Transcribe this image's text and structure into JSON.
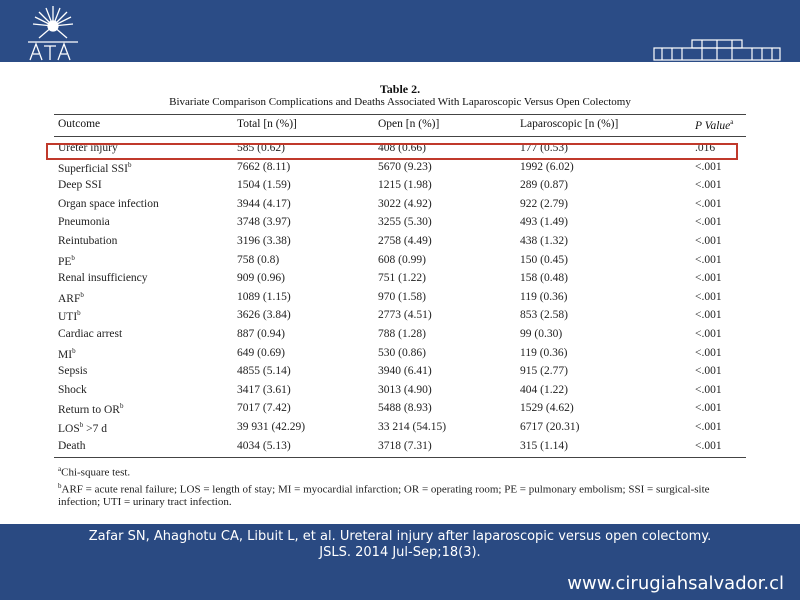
{
  "table": {
    "title": "Table 2.",
    "subtitle": "Bivariate Comparison Complications and Deaths Associated With Laparoscopic Versus Open Colectomy",
    "headers": [
      "Outcome",
      "Total [n (%)]",
      "Open [n (%)]",
      "Laparoscopic [n (%)]",
      "P Value"
    ],
    "header_p_sup": "a",
    "rows": [
      {
        "outcome": "Ureter injury",
        "sup": "",
        "total": "585 (0.62)",
        "open": "408 (0.66)",
        "lap": "177 (0.53)",
        "p": ".016"
      },
      {
        "outcome": "Superficial SSI",
        "sup": "b",
        "total": "7662 (8.11)",
        "open": "5670 (9.23)",
        "lap": "1992 (6.02)",
        "p": "<.001"
      },
      {
        "outcome": "Deep SSI",
        "sup": "",
        "total": "1504 (1.59)",
        "open": "1215 (1.98)",
        "lap": "289 (0.87)",
        "p": "<.001"
      },
      {
        "outcome": "Organ space infection",
        "sup": "",
        "total": "3944 (4.17)",
        "open": "3022 (4.92)",
        "lap": "922 (2.79)",
        "p": "<.001"
      },
      {
        "outcome": "Pneumonia",
        "sup": "",
        "total": "3748 (3.97)",
        "open": "3255 (5.30)",
        "lap": "493 (1.49)",
        "p": "<.001"
      },
      {
        "outcome": "Reintubation",
        "sup": "",
        "total": "3196 (3.38)",
        "open": "2758 (4.49)",
        "lap": "438 (1.32)",
        "p": "<.001"
      },
      {
        "outcome": "PE",
        "sup": "b",
        "total": "758 (0.8)",
        "open": "608 (0.99)",
        "lap": "150 (0.45)",
        "p": "<.001"
      },
      {
        "outcome": "Renal insufficiency",
        "sup": "",
        "total": "909 (0.96)",
        "open": "751 (1.22)",
        "lap": "158 (0.48)",
        "p": "<.001"
      },
      {
        "outcome": "ARF",
        "sup": "b",
        "total": "1089 (1.15)",
        "open": "970 (1.58)",
        "lap": "119 (0.36)",
        "p": "<.001"
      },
      {
        "outcome": "UTI",
        "sup": "b",
        "total": "3626 (3.84)",
        "open": "2773 (4.51)",
        "lap": "853 (2.58)",
        "p": "<.001"
      },
      {
        "outcome": "Cardiac arrest",
        "sup": "",
        "total": "887 (0.94)",
        "open": "788 (1.28)",
        "lap": "99 (0.30)",
        "p": "<.001"
      },
      {
        "outcome": "MI",
        "sup": "b",
        "total": "649 (0.69)",
        "open": "530 (0.86)",
        "lap": "119 (0.36)",
        "p": "<.001"
      },
      {
        "outcome": "Sepsis",
        "sup": "",
        "total": "4855 (5.14)",
        "open": "3940 (6.41)",
        "lap": "915 (2.77)",
        "p": "<.001"
      },
      {
        "outcome": "Shock",
        "sup": "",
        "total": "3417 (3.61)",
        "open": "3013 (4.90)",
        "lap": "404 (1.22)",
        "p": "<.001"
      },
      {
        "outcome": "Return to OR",
        "sup": "b",
        "total": "7017 (7.42)",
        "open": "5488 (8.93)",
        "lap": "1529 (4.62)",
        "p": "<.001"
      },
      {
        "outcome": "LOS",
        "sup": "b",
        "suffix": " >7 d",
        "total": "39 931 (42.29)",
        "open": "33 214 (54.15)",
        "lap": "6717 (20.31)",
        "p": "<.001"
      },
      {
        "outcome": "Death",
        "sup": "",
        "total": "4034 (5.13)",
        "open": "3718 (7.31)",
        "lap": "315 (1.14)",
        "p": "<.001"
      }
    ],
    "footnote_a": "Chi-square test.",
    "footnote_b": "ARF = acute renal failure; LOS = length of stay; MI = myocardial infarction; OR = operating room; PE = pulmonary embolism; SSI = surgical-site infection; UTI = urinary tract infection."
  },
  "citation": "Zafar SN, Ahaghotu CA, Libuit L, et al. Ureteral injury after laparoscopic versus open colectomy. JSLS. 2014 Jul-Sep;18(3).",
  "website": "www.cirugiahsalvador.cl",
  "colors": {
    "band": "#2b4c86",
    "highlight": "#c0392b"
  }
}
